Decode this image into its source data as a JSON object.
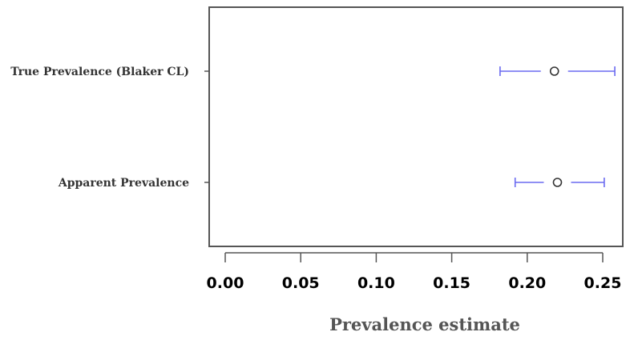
{
  "chart_data": {
    "type": "dot-interval",
    "title": "",
    "xlabel": "Prevalence estimate",
    "ylabel": "",
    "xlim": [
      -0.01,
      0.27
    ],
    "x_ticks": [
      0.0,
      0.05,
      0.1,
      0.15,
      0.2,
      0.25
    ],
    "x_tick_labels": [
      "0.00",
      "0.05",
      "0.10",
      "0.15",
      "0.20",
      "0.25"
    ],
    "grid": false,
    "legend": "none",
    "series": [
      {
        "label": "True Prevalence (Blaker CL)",
        "estimate": 0.218,
        "lower": 0.182,
        "upper": 0.258
      },
      {
        "label": "Apparent Prevalence",
        "estimate": 0.22,
        "lower": 0.192,
        "upper": 0.251
      }
    ],
    "colors": {
      "interval": "#6a6af0",
      "point": "#333333",
      "frame": "#555555"
    }
  }
}
